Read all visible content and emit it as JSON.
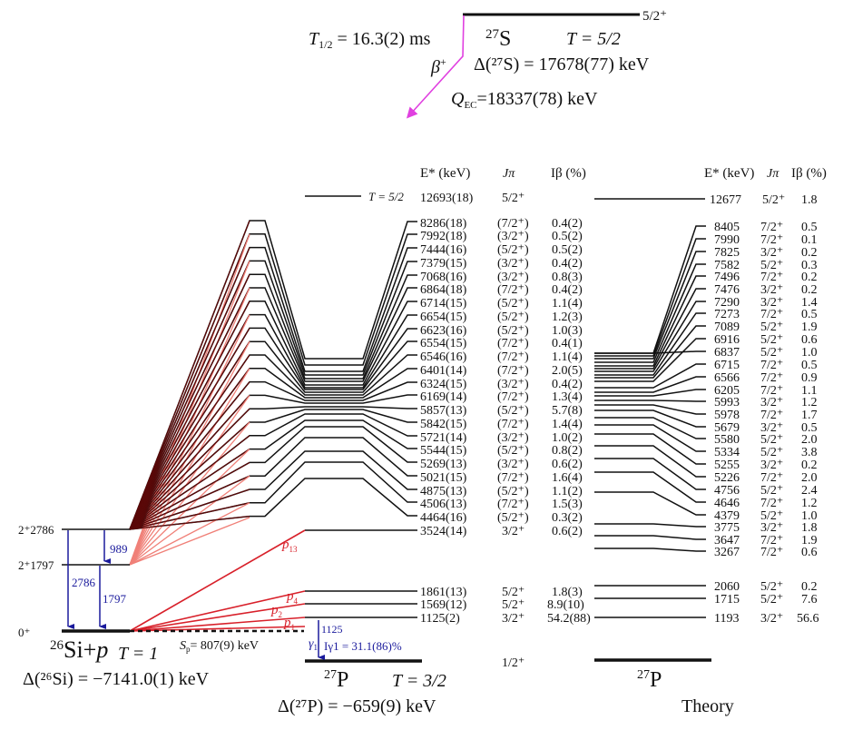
{
  "parent": {
    "nucleus": "27S",
    "nucleus_mass": "27",
    "nucleus_symbol": "S",
    "spin": "5/2⁺",
    "isospin": "T = 5/2",
    "half_life_label": "T",
    "half_life_sub": "1/2",
    "half_life_value": " = 16.3(2) ms",
    "decay_mode": "β",
    "decay_mode_sup": "+",
    "mass_excess": "Δ(²⁷S) = 17678(77) keV",
    "q_label": "Q",
    "q_sub": "EC",
    "q_value": "=18337(78) keV"
  },
  "columns": {
    "energy": "E* (keV)",
    "spin": "Jπ",
    "intensity": "Iβ (%)"
  },
  "experiment": {
    "ias": {
      "energy": "12693(18)",
      "spin": "5/2⁺",
      "isospin_label": "T = 5/2"
    },
    "levels": [
      {
        "energy": "8286(18)",
        "spin": "(7/2⁺)",
        "ib": "0.4(2)"
      },
      {
        "energy": "7992(18)",
        "spin": "(3/2⁺)",
        "ib": "0.5(2)"
      },
      {
        "energy": "7444(16)",
        "spin": "(5/2⁺)",
        "ib": "0.5(2)"
      },
      {
        "energy": "7379(15)",
        "spin": "(3/2⁺)",
        "ib": "0.4(2)"
      },
      {
        "energy": "7068(16)",
        "spin": "(3/2⁺)",
        "ib": "0.8(3)"
      },
      {
        "energy": "6864(18)",
        "spin": "(7/2⁺)",
        "ib": "0.4(2)"
      },
      {
        "energy": "6714(15)",
        "spin": "(5/2⁺)",
        "ib": "1.1(4)"
      },
      {
        "energy": "6654(15)",
        "spin": "(5/2⁺)",
        "ib": "1.2(3)"
      },
      {
        "energy": "6623(16)",
        "spin": "(5/2⁺)",
        "ib": "1.0(3)"
      },
      {
        "energy": "6554(15)",
        "spin": "(7/2⁺)",
        "ib": "0.4(1)"
      },
      {
        "energy": "6546(16)",
        "spin": "(7/2⁺)",
        "ib": "1.1(4)"
      },
      {
        "energy": "6401(14)",
        "spin": "(7/2⁺)",
        "ib": "2.0(5)"
      },
      {
        "energy": "6324(15)",
        "spin": "(3/2⁺)",
        "ib": "0.4(2)"
      },
      {
        "energy": "6169(14)",
        "spin": "(7/2⁺)",
        "ib": "1.3(4)"
      },
      {
        "energy": "5857(13)",
        "spin": "(5/2⁺)",
        "ib": "5.7(8)"
      },
      {
        "energy": "5842(15)",
        "spin": "(7/2⁺)",
        "ib": "1.4(4)"
      },
      {
        "energy": "5721(14)",
        "spin": "(3/2⁺)",
        "ib": "1.0(2)"
      },
      {
        "energy": "5544(15)",
        "spin": "(5/2⁺)",
        "ib": "0.8(2)"
      },
      {
        "energy": "5269(13)",
        "spin": "(3/2⁺)",
        "ib": "0.6(2)"
      },
      {
        "energy": "5021(15)",
        "spin": "(7/2⁺)",
        "ib": "1.6(4)"
      },
      {
        "energy": "4875(13)",
        "spin": "(5/2⁺)",
        "ib": "1.1(2)"
      },
      {
        "energy": "4506(13)",
        "spin": "(7/2⁺)",
        "ib": "1.5(3)"
      },
      {
        "energy": "4464(16)",
        "spin": "(5/2⁺)",
        "ib": "0.3(2)"
      },
      {
        "energy": "3524(14)",
        "spin": "3/2⁺",
        "ib": "0.6(2)"
      },
      {
        "energy": "1861(13)",
        "spin": "5/2⁺",
        "ib": "1.8(3)"
      },
      {
        "energy": "1569(12)",
        "spin": "5/2⁺",
        "ib": "8.9(10)"
      },
      {
        "energy": "1125(2)",
        "spin": "3/2⁺",
        "ib": "54.2(88)"
      }
    ],
    "ground": {
      "spin": "1/2⁺"
    },
    "daughter_mass": "27",
    "daughter_symbol": "P",
    "daughter_isospin": "T = 3/2",
    "daughter_mass_excess": "Δ(²⁷P) = −659(9) keV",
    "gamma": {
      "label": "γ",
      "sub": "1",
      "energy": "1125",
      "intensity": "Iγ1 = 31.1(86)%"
    },
    "proton_labels": [
      {
        "label": "p",
        "sub": "13"
      },
      {
        "label": "p",
        "sub": "4"
      },
      {
        "label": "p",
        "sub": "2"
      },
      {
        "label": "p",
        "sub": "1"
      }
    ]
  },
  "proton_daughter": {
    "levels": [
      {
        "label": "2⁺2786"
      },
      {
        "label": "2⁺1797"
      },
      {
        "label": "0⁺"
      }
    ],
    "gammas": [
      "2786",
      "989",
      "1797"
    ],
    "system_mass": "26",
    "system_label": "Si+",
    "system_p": "p",
    "isospin": "T = 1",
    "mass_excess": "Δ(²⁶Si) = −7141.0(1) keV",
    "sp_label": "S",
    "sp_sub": "p",
    "sp_value": "= 807(9) keV"
  },
  "theory": {
    "ias": {
      "energy": "12677",
      "spin": "5/2⁺",
      "ib": "1.8"
    },
    "levels": [
      {
        "energy": "8405",
        "spin": "7/2⁺",
        "ib": "0.5"
      },
      {
        "energy": "7990",
        "spin": "7/2⁺",
        "ib": "0.1"
      },
      {
        "energy": "7825",
        "spin": "3/2⁺",
        "ib": "0.2"
      },
      {
        "energy": "7582",
        "spin": "5/2⁺",
        "ib": "0.3"
      },
      {
        "energy": "7496",
        "spin": "7/2⁺",
        "ib": "0.2"
      },
      {
        "energy": "7476",
        "spin": "3/2⁺",
        "ib": "0.2"
      },
      {
        "energy": "7290",
        "spin": "3/2⁺",
        "ib": "1.4"
      },
      {
        "energy": "7273",
        "spin": "7/2⁺",
        "ib": "0.5"
      },
      {
        "energy": "7089",
        "spin": "5/2⁺",
        "ib": "1.9"
      },
      {
        "energy": "6916",
        "spin": "5/2⁺",
        "ib": "0.6"
      },
      {
        "energy": "6837",
        "spin": "5/2⁺",
        "ib": "1.0"
      },
      {
        "energy": "6715",
        "spin": "7/2⁺",
        "ib": "0.5"
      },
      {
        "energy": "6566",
        "spin": "7/2⁺",
        "ib": "0.9"
      },
      {
        "energy": "6205",
        "spin": "7/2⁺",
        "ib": "1.1"
      },
      {
        "energy": "5993",
        "spin": "3/2⁺",
        "ib": "1.2"
      },
      {
        "energy": "5978",
        "spin": "7/2⁺",
        "ib": "1.7"
      },
      {
        "energy": "5679",
        "spin": "3/2⁺",
        "ib": "0.5"
      },
      {
        "energy": "5580",
        "spin": "5/2⁺",
        "ib": "2.0"
      },
      {
        "energy": "5334",
        "spin": "5/2⁺",
        "ib": "3.8"
      },
      {
        "energy": "5255",
        "spin": "3/2⁺",
        "ib": "0.2"
      },
      {
        "energy": "5226",
        "spin": "7/2⁺",
        "ib": "2.0"
      },
      {
        "energy": "4756",
        "spin": "5/2⁺",
        "ib": "2.4"
      },
      {
        "energy": "4646",
        "spin": "7/2⁺",
        "ib": "1.2"
      },
      {
        "energy": "4379",
        "spin": "5/2⁺",
        "ib": "1.0"
      },
      {
        "energy": "3775",
        "spin": "3/2⁺",
        "ib": "1.8"
      },
      {
        "energy": "3647",
        "spin": "7/2⁺",
        "ib": "1.9"
      },
      {
        "energy": "3267",
        "spin": "7/2⁺",
        "ib": "0.6"
      },
      {
        "energy": "2060",
        "spin": "5/2⁺",
        "ib": "0.2"
      },
      {
        "energy": "1715",
        "spin": "5/2⁺",
        "ib": "7.6"
      },
      {
        "energy": "1193",
        "spin": "3/2⁺",
        "ib": "56.6"
      }
    ],
    "daughter_mass": "27",
    "daughter_symbol": "P",
    "caption": "Theory"
  },
  "colors": {
    "beta_arrow": "#e040e0",
    "gamma": "#1a1a9c",
    "proton": "#d8202a",
    "proton_light": "#f08078",
    "proton_dark": "#5a0808"
  }
}
